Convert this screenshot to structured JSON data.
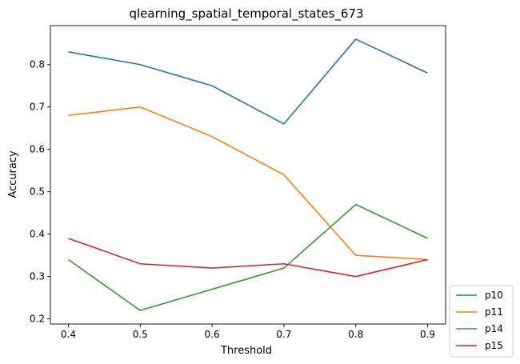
{
  "chart_data": {
    "type": "line",
    "title": "qlearning_spatial_temporal_states_673",
    "xlabel": "Threshold",
    "ylabel": "Accuracy",
    "x": [
      0.4,
      0.5,
      0.6,
      0.7,
      0.8,
      0.9
    ],
    "x_ticks": [
      "0.4",
      "0.5",
      "0.6",
      "0.7",
      "0.8",
      "0.9"
    ],
    "y_ticks": [
      "0.2",
      "0.3",
      "0.4",
      "0.5",
      "0.6",
      "0.7",
      "0.8"
    ],
    "xlim": [
      0.375,
      0.925
    ],
    "ylim": [
      0.188,
      0.892
    ],
    "grid": false,
    "legend_position": "outside-bottom-right",
    "series": [
      {
        "name": "p10",
        "color": "#1f77b4",
        "values": [
          0.83,
          0.8,
          0.75,
          0.66,
          0.86,
          0.78
        ]
      },
      {
        "name": "p11",
        "color": "#ff7f0e",
        "values": [
          0.68,
          0.7,
          0.63,
          0.54,
          0.35,
          0.34
        ]
      },
      {
        "name": "p14",
        "color": "#2ca02c",
        "values": [
          0.34,
          0.22,
          0.27,
          0.32,
          0.47,
          0.39
        ]
      },
      {
        "name": "p15",
        "color": "#d62728",
        "values": [
          0.39,
          0.33,
          0.32,
          0.33,
          0.3,
          0.34
        ]
      }
    ]
  }
}
